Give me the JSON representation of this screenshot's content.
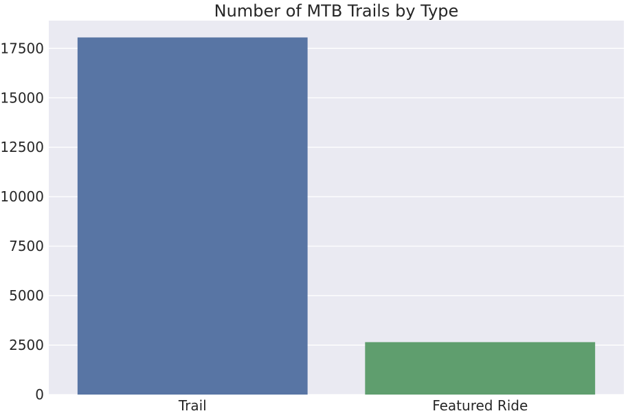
{
  "colors": {
    "plot_background": "#EAEAF2",
    "gridline": "#FFFFFF",
    "text": "#262626",
    "series": [
      "#5875A4",
      "#5F9E6E"
    ]
  },
  "chart_data": {
    "type": "bar",
    "title": "Number of MTB Trails by Type",
    "xlabel": "",
    "ylabel": "",
    "categories": [
      "Trail",
      "Featured Ride"
    ],
    "values": [
      18050,
      2650
    ],
    "ylim": [
      0,
      18900
    ],
    "yticks": [
      0,
      2500,
      5000,
      7500,
      10000,
      12500,
      15000,
      17500
    ],
    "ytick_labels": [
      "0",
      "2500",
      "5000",
      "7500",
      "10000",
      "12500",
      "15000",
      "17500"
    ],
    "grid": true,
    "legend": "none"
  }
}
